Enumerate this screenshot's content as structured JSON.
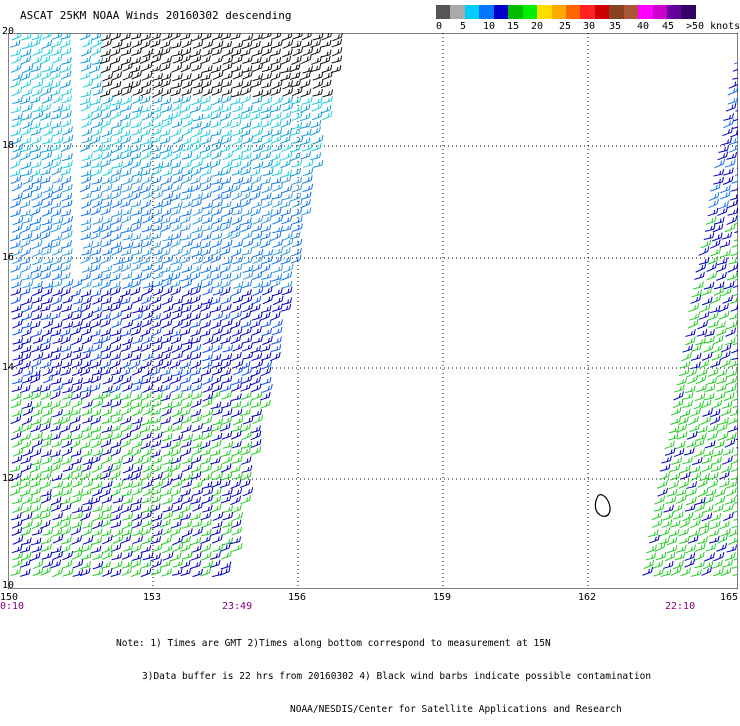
{
  "title": "ASCAT 25KM NOAA Winds 20160302 descending",
  "colorbar": {
    "colors": [
      "#555555",
      "#aaaaaa",
      "#00ccff",
      "#0077ff",
      "#0000cc",
      "#00bb00",
      "#00ee00",
      "#ffdd00",
      "#ffaa00",
      "#ff6600",
      "#ff2222",
      "#cc0000",
      "#884422",
      "#aa5533",
      "#ff00ff",
      "#cc00cc",
      "#660099",
      "#330066"
    ],
    "labels": [
      "0",
      "5",
      "10",
      "15",
      "20",
      "25",
      "30",
      "35",
      "40",
      "45",
      ">50 knots"
    ]
  },
  "map": {
    "lat_labels": [
      "20",
      "18",
      "16",
      "14",
      "12",
      "10"
    ],
    "lon_labels": [
      "150",
      "153",
      "156",
      "159",
      "162",
      "165"
    ],
    "time_labels": [
      "0:10",
      "23:49",
      "22:10"
    ]
  },
  "notes": [
    "Note: 1) Times are GMT 2)Times along bottom correspond to measurement at 15N",
    "3)Data buffer is 22 hrs from 20160302 4) Black wind barbs indicate possible contamination",
    "NOAA/NESDIS/Center for Satellite Applications and Research"
  ]
}
